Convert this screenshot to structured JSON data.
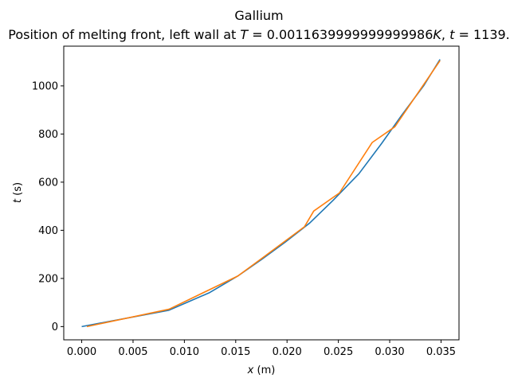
{
  "chart_data": {
    "type": "line",
    "title": "Gallium",
    "subtitle": "Position of melting front, left wall at T = 0.0011639999999999986K, t = 1139.",
    "subtitle_parts": {
      "prefix": "Position of melting front, left wall at ",
      "t_var": "T",
      "t_eq": " = 0.0011639999999999986",
      "t_unit": "K",
      "sep": ", ",
      "time_var": "t",
      "time_eq": " = 1139."
    },
    "xlabel": "x (m)",
    "xlabel_parts": {
      "var": "x",
      "unit": " (m)"
    },
    "ylabel": "t (s)",
    "ylabel_parts": {
      "var": "t",
      "unit": " (s)"
    },
    "xlim": [
      -0.00175,
      0.03675
    ],
    "ylim": [
      -55,
      1165
    ],
    "x_ticks": [
      0.0,
      0.005,
      0.01,
      0.015,
      0.02,
      0.025,
      0.03,
      0.035
    ],
    "x_tick_labels": [
      "0.000",
      "0.005",
      "0.010",
      "0.015",
      "0.020",
      "0.025",
      "0.030",
      "0.035"
    ],
    "y_ticks": [
      0,
      200,
      400,
      600,
      800,
      1000
    ],
    "y_tick_labels": [
      "0",
      "200",
      "400",
      "600",
      "800",
      "1000"
    ],
    "grid": false,
    "legend": "none",
    "series": [
      {
        "color": "#1f77b4",
        "points": [
          [
            0.0,
            0
          ],
          [
            0.0085,
            68
          ],
          [
            0.0124,
            140
          ],
          [
            0.0152,
            210
          ],
          [
            0.0175,
            278
          ],
          [
            0.0198,
            350
          ],
          [
            0.0222,
            430
          ],
          [
            0.0245,
            525
          ],
          [
            0.027,
            635
          ],
          [
            0.0292,
            760
          ],
          [
            0.0312,
            880
          ],
          [
            0.0333,
            1000
          ],
          [
            0.0349,
            1110
          ]
        ]
      },
      {
        "color": "#ff7f0e",
        "points": [
          [
            0.0005,
            0
          ],
          [
            0.0085,
            72
          ],
          [
            0.0152,
            210
          ],
          [
            0.0176,
            285
          ],
          [
            0.0217,
            415
          ],
          [
            0.0226,
            480
          ],
          [
            0.0251,
            555
          ],
          [
            0.0283,
            765
          ],
          [
            0.0305,
            830
          ],
          [
            0.0349,
            1105
          ]
        ]
      }
    ]
  }
}
